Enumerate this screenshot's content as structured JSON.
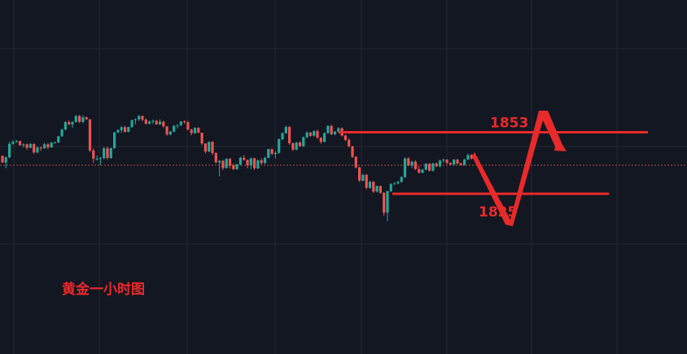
{
  "chart_data": {
    "type": "candlestick",
    "caption": "黄金一小时图",
    "grid": true,
    "colors": {
      "up": "#26a69a",
      "down": "#ef5350",
      "annotation": "#e82a2a",
      "background": "#131722",
      "grid": "#232733",
      "reference_line": "#b64b3c"
    },
    "levels": [
      {
        "value": 1853,
        "label": "1853"
      },
      {
        "value": 1825,
        "label": "1825"
      }
    ],
    "reference_price": 1838,
    "projection": [
      1843,
      1825,
      1853,
      1844
    ],
    "candles": [
      [
        1842.3,
        1842.3,
        1839.2,
        1839.2
      ],
      [
        1839.2,
        1841.9,
        1836.7,
        1841.6
      ],
      [
        1841.6,
        1848.7,
        1841.2,
        1847.7
      ],
      [
        1847.7,
        1849.4,
        1847.3,
        1848.6
      ],
      [
        1848.6,
        1849.5,
        1848.2,
        1849.0
      ],
      [
        1849.0,
        1849.1,
        1846.9,
        1847.1
      ],
      [
        1847.1,
        1847.9,
        1846.0,
        1847.5
      ],
      [
        1847.5,
        1847.8,
        1845.0,
        1845.9
      ],
      [
        1845.9,
        1847.9,
        1845.7,
        1847.7
      ],
      [
        1847.7,
        1847.8,
        1843.1,
        1843.8
      ],
      [
        1843.8,
        1846.6,
        1843.4,
        1846.0
      ],
      [
        1846.0,
        1846.4,
        1844.5,
        1845.7
      ],
      [
        1845.7,
        1848.1,
        1845.5,
        1847.5
      ],
      [
        1847.5,
        1848.0,
        1845.3,
        1846.1
      ],
      [
        1846.1,
        1848.5,
        1845.9,
        1848.3
      ],
      [
        1848.3,
        1848.8,
        1847.9,
        1848.4
      ],
      [
        1848.4,
        1851.3,
        1848.0,
        1851.2
      ],
      [
        1851.2,
        1854.6,
        1850.8,
        1854.2
      ],
      [
        1854.2,
        1858.1,
        1853.9,
        1857.6
      ],
      [
        1857.6,
        1858.5,
        1856.3,
        1856.5
      ],
      [
        1856.5,
        1858.1,
        1855.1,
        1857.7
      ],
      [
        1857.7,
        1860.9,
        1857.3,
        1860.4
      ],
      [
        1860.4,
        1860.9,
        1857.2,
        1857.7
      ],
      [
        1857.7,
        1860.8,
        1857.2,
        1859.8
      ],
      [
        1859.8,
        1860.2,
        1858.6,
        1858.9
      ],
      [
        1858.9,
        1858.9,
        1844.0,
        1844.7
      ],
      [
        1844.7,
        1845.7,
        1839.0,
        1841.0
      ],
      [
        1841.0,
        1842.5,
        1840.1,
        1841.0
      ],
      [
        1841.0,
        1841.9,
        1838.0,
        1841.2
      ],
      [
        1841.2,
        1846.3,
        1840.7,
        1845.7
      ],
      [
        1845.7,
        1846.6,
        1840.5,
        1841.3
      ],
      [
        1841.3,
        1846.0,
        1840.9,
        1845.8
      ],
      [
        1845.8,
        1853.1,
        1845.4,
        1852.9
      ],
      [
        1852.9,
        1854.3,
        1852.6,
        1854.0
      ],
      [
        1854.0,
        1855.7,
        1852.6,
        1855.3
      ],
      [
        1855.3,
        1856.0,
        1852.8,
        1853.2
      ],
      [
        1853.2,
        1855.5,
        1852.9,
        1855.4
      ],
      [
        1855.4,
        1858.7,
        1855.0,
        1858.5
      ],
      [
        1858.5,
        1859.3,
        1856.6,
        1858.9
      ],
      [
        1858.9,
        1860.9,
        1858.1,
        1860.4
      ],
      [
        1860.4,
        1860.6,
        1858.0,
        1858.7
      ],
      [
        1858.7,
        1859.3,
        1856.4,
        1856.9
      ],
      [
        1856.9,
        1858.3,
        1856.5,
        1857.9
      ],
      [
        1857.9,
        1858.8,
        1856.8,
        1858.2
      ],
      [
        1858.2,
        1858.6,
        1856.4,
        1856.6
      ],
      [
        1856.6,
        1858.9,
        1856.3,
        1857.8
      ],
      [
        1857.8,
        1858.2,
        1855.1,
        1855.7
      ],
      [
        1855.7,
        1855.8,
        1851.4,
        1852.0
      ],
      [
        1852.0,
        1853.6,
        1851.6,
        1853.3
      ],
      [
        1853.3,
        1856.3,
        1852.9,
        1855.9
      ],
      [
        1855.9,
        1856.6,
        1854.7,
        1856.3
      ],
      [
        1856.3,
        1858.0,
        1855.8,
        1857.9
      ],
      [
        1857.9,
        1858.4,
        1856.8,
        1857.6
      ],
      [
        1857.6,
        1858.1,
        1853.9,
        1854.2
      ],
      [
        1854.2,
        1854.6,
        1851.6,
        1852.6
      ],
      [
        1852.6,
        1855.2,
        1852.2,
        1855.0
      ],
      [
        1855.0,
        1855.3,
        1852.5,
        1852.8
      ],
      [
        1852.8,
        1852.8,
        1847.2,
        1847.9
      ],
      [
        1847.9,
        1848.0,
        1843.4,
        1844.2
      ],
      [
        1844.2,
        1848.8,
        1844.0,
        1848.6
      ],
      [
        1848.6,
        1849.0,
        1842.7,
        1843.5
      ],
      [
        1843.5,
        1843.9,
        1838.9,
        1839.3
      ],
      [
        1839.3,
        1840.3,
        1832.9,
        1840.0
      ],
      [
        1840.0,
        1840.4,
        1835.8,
        1836.7
      ],
      [
        1836.7,
        1841.2,
        1836.5,
        1840.9
      ],
      [
        1840.9,
        1841.3,
        1836.6,
        1837.9
      ],
      [
        1837.9,
        1838.8,
        1835.8,
        1836.2
      ],
      [
        1836.2,
        1838.6,
        1835.8,
        1838.4
      ],
      [
        1838.4,
        1841.9,
        1837.8,
        1841.4
      ],
      [
        1841.4,
        1842.6,
        1840.1,
        1840.4
      ],
      [
        1840.4,
        1840.6,
        1836.6,
        1838.0
      ],
      [
        1838.0,
        1841.5,
        1836.2,
        1841.1
      ],
      [
        1841.1,
        1841.4,
        1835.9,
        1836.6
      ],
      [
        1836.6,
        1840.5,
        1836.2,
        1840.2
      ],
      [
        1840.2,
        1841.2,
        1838.4,
        1839.0
      ],
      [
        1839.0,
        1841.9,
        1838.6,
        1841.3
      ],
      [
        1841.3,
        1845.5,
        1841.1,
        1845.3
      ],
      [
        1845.3,
        1845.6,
        1842.7,
        1843.1
      ],
      [
        1843.1,
        1844.3,
        1841.1,
        1843.6
      ],
      [
        1843.6,
        1850.2,
        1843.2,
        1849.8
      ],
      [
        1849.8,
        1853.0,
        1849.4,
        1852.6
      ],
      [
        1852.6,
        1856.0,
        1852.2,
        1855.4
      ],
      [
        1855.4,
        1855.8,
        1847.3,
        1848.0
      ],
      [
        1848.0,
        1848.4,
        1844.4,
        1845.1
      ],
      [
        1845.1,
        1848.6,
        1844.7,
        1848.3
      ],
      [
        1848.3,
        1848.9,
        1846.3,
        1846.7
      ],
      [
        1846.7,
        1851.1,
        1846.3,
        1850.7
      ],
      [
        1850.7,
        1853.6,
        1850.3,
        1852.8
      ],
      [
        1852.8,
        1853.2,
        1850.9,
        1851.4
      ],
      [
        1851.4,
        1853.9,
        1851.0,
        1853.5
      ],
      [
        1853.5,
        1854.2,
        1850.1,
        1850.5
      ],
      [
        1850.5,
        1850.8,
        1847.7,
        1848.6
      ],
      [
        1848.6,
        1853.0,
        1848.3,
        1852.6
      ],
      [
        1852.6,
        1856.2,
        1852.3,
        1855.9
      ],
      [
        1855.9,
        1856.4,
        1851.6,
        1852.1
      ],
      [
        1852.1,
        1853.6,
        1851.6,
        1853.3
      ],
      [
        1853.3,
        1855.3,
        1852.8,
        1854.8
      ],
      [
        1854.8,
        1855.2,
        1851.1,
        1851.5
      ],
      [
        1851.5,
        1851.9,
        1849.0,
        1849.5
      ],
      [
        1849.5,
        1850.3,
        1846.2,
        1846.6
      ],
      [
        1846.6,
        1846.8,
        1841.3,
        1841.8
      ],
      [
        1841.8,
        1842.1,
        1836.5,
        1837.0
      ],
      [
        1837.0,
        1837.3,
        1830.4,
        1831.0
      ],
      [
        1831.0,
        1834.1,
        1830.6,
        1833.6
      ],
      [
        1833.6,
        1834.0,
        1827.0,
        1827.7
      ],
      [
        1827.7,
        1830.9,
        1827.3,
        1830.4
      ],
      [
        1830.4,
        1830.8,
        1825.4,
        1826.0
      ],
      [
        1826.0,
        1828.8,
        1825.6,
        1828.5
      ],
      [
        1828.5,
        1828.8,
        1825.0,
        1825.4
      ],
      [
        1825.4,
        1825.8,
        1815.0,
        1816.4
      ],
      [
        1816.4,
        1826.4,
        1812.5,
        1826.2
      ],
      [
        1826.2,
        1829.8,
        1825.8,
        1829.4
      ],
      [
        1829.4,
        1830.3,
        1829.0,
        1829.7
      ],
      [
        1829.7,
        1830.9,
        1829.3,
        1830.4
      ],
      [
        1830.4,
        1833.0,
        1830.0,
        1832.6
      ],
      [
        1832.6,
        1841.5,
        1832.2,
        1841.1
      ],
      [
        1841.1,
        1841.6,
        1837.5,
        1837.9
      ],
      [
        1837.9,
        1840.0,
        1836.7,
        1839.6
      ],
      [
        1839.6,
        1840.3,
        1835.8,
        1836.2
      ],
      [
        1836.2,
        1837.6,
        1834.2,
        1834.6
      ],
      [
        1834.6,
        1836.3,
        1834.2,
        1836.0
      ],
      [
        1836.0,
        1839.0,
        1835.6,
        1838.6
      ],
      [
        1838.6,
        1839.0,
        1835.1,
        1835.5
      ],
      [
        1835.5,
        1839.1,
        1835.1,
        1838.8
      ],
      [
        1838.8,
        1839.3,
        1837.1,
        1837.5
      ],
      [
        1837.5,
        1840.5,
        1837.0,
        1840.1
      ],
      [
        1840.1,
        1841.0,
        1839.2,
        1840.5
      ],
      [
        1840.5,
        1840.8,
        1838.5,
        1839.0
      ],
      [
        1839.0,
        1839.3,
        1837.9,
        1838.3
      ],
      [
        1838.3,
        1840.8,
        1837.8,
        1840.5
      ],
      [
        1840.5,
        1840.9,
        1838.4,
        1838.8
      ],
      [
        1838.8,
        1839.2,
        1837.8,
        1838.2
      ],
      [
        1838.2,
        1840.9,
        1837.8,
        1840.6
      ],
      [
        1840.6,
        1843.3,
        1840.2,
        1842.6
      ],
      [
        1842.6,
        1843.0,
        1840.6,
        1841.0
      ]
    ]
  }
}
